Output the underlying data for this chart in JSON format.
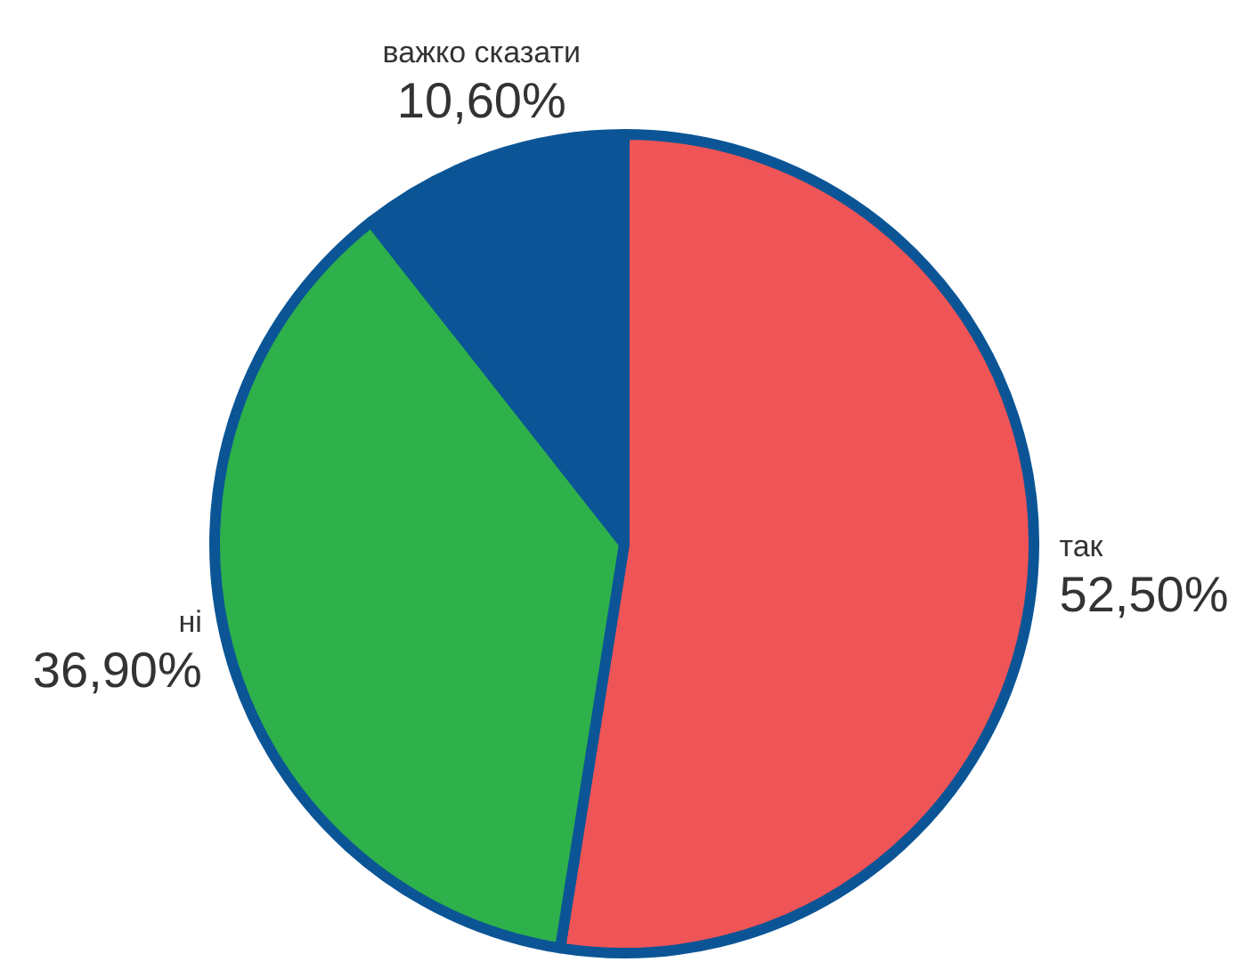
{
  "chart_data": {
    "type": "pie",
    "categories": [
      "так",
      "ні",
      "важко сказати"
    ],
    "values": [
      52.5,
      36.9,
      10.6
    ],
    "value_labels": [
      "52,50%",
      "36,90%",
      "10,60%"
    ],
    "colors": [
      "#ef5456",
      "#2eb04b",
      "#0b5596"
    ]
  }
}
